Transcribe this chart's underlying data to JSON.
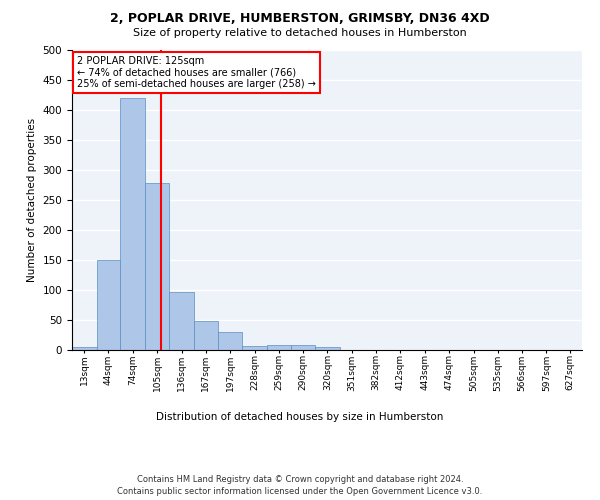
{
  "title1": "2, POPLAR DRIVE, HUMBERSTON, GRIMSBY, DN36 4XD",
  "title2": "Size of property relative to detached houses in Humberston",
  "xlabel": "Distribution of detached houses by size in Humberston",
  "ylabel": "Number of detached properties",
  "footnote1": "Contains HM Land Registry data © Crown copyright and database right 2024.",
  "footnote2": "Contains public sector information licensed under the Open Government Licence v3.0.",
  "annotation_line1": "2 POPLAR DRIVE: 125sqm",
  "annotation_line2": "← 74% of detached houses are smaller (766)",
  "annotation_line3": "25% of semi-detached houses are larger (258) →",
  "property_size": 125,
  "bar_categories": [
    "13sqm",
    "44sqm",
    "74sqm",
    "105sqm",
    "136sqm",
    "167sqm",
    "197sqm",
    "228sqm",
    "259sqm",
    "290sqm",
    "320sqm",
    "351sqm",
    "382sqm",
    "412sqm",
    "443sqm",
    "474sqm",
    "505sqm",
    "535sqm",
    "566sqm",
    "597sqm",
    "627sqm"
  ],
  "bar_values": [
    5,
    150,
    420,
    278,
    96,
    49,
    30,
    7,
    9,
    8,
    5,
    0,
    0,
    0,
    0,
    0,
    0,
    0,
    0,
    0,
    0
  ],
  "bar_edges": [
    13,
    44,
    74,
    105,
    136,
    167,
    197,
    228,
    259,
    290,
    320,
    351,
    382,
    412,
    443,
    474,
    505,
    535,
    566,
    597,
    627,
    657
  ],
  "bar_color": "#aec6e8",
  "bar_edge_color": "#5a8fc2",
  "vline_x": 125,
  "vline_color": "red",
  "ylim": [
    0,
    500
  ],
  "yticks": [
    0,
    50,
    100,
    150,
    200,
    250,
    300,
    350,
    400,
    450,
    500
  ],
  "background_color": "#eef2f9",
  "grid_color": "#ffffff",
  "annotation_box_color": "white",
  "annotation_box_edge_color": "red"
}
